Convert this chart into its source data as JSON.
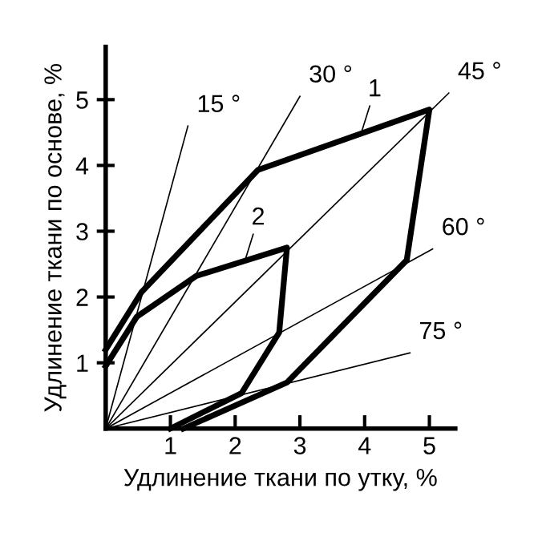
{
  "chart_data": {
    "type": "line",
    "xlabel": "Удлинение ткани по утку, %",
    "ylabel": "Удлинение ткани по основе, %",
    "xlim": [
      0,
      5.4
    ],
    "ylim": [
      0,
      5.8
    ],
    "xticks": [
      1,
      2,
      3,
      4,
      5
    ],
    "yticks": [
      1,
      2,
      3,
      4,
      5
    ],
    "grid": false,
    "legend": false,
    "marker": "none",
    "line_style": "solid",
    "series": [
      {
        "color": "#000000",
        "x": [
          0,
          0.55,
          2.35,
          5.0,
          4.65,
          2.8,
          1.2
        ],
        "values": [
          1.2,
          2.07,
          3.93,
          4.85,
          2.56,
          0.7,
          0
        ]
      },
      {
        "color": "#000000",
        "x": [
          0,
          0.48,
          1.4,
          2.8,
          2.68,
          2.1,
          1.0
        ],
        "values": [
          0.95,
          1.7,
          2.32,
          2.75,
          1.46,
          0.54,
          0
        ]
      },
      {
        "color": "#000000",
        "x": [
          0,
          1.27
        ],
        "values": [
          0,
          4.6
        ]
      },
      {
        "color": "#000000",
        "x": [
          0,
          3.0
        ],
        "values": [
          0,
          5.05
        ]
      },
      {
        "color": "#000000",
        "x": [
          0,
          5.3
        ],
        "values": [
          0,
          5.1
        ]
      },
      {
        "color": "#000000",
        "x": [
          0,
          5.05
        ],
        "values": [
          0,
          2.73
        ]
      },
      {
        "color": "#000000",
        "x": [
          0,
          4.7
        ],
        "values": [
          0,
          1.15
        ]
      }
    ],
    "annotations": [
      {
        "text": "15 °",
        "x": 1.27,
        "y": 4.6
      },
      {
        "text": "30 °",
        "x": 3.0,
        "y": 5.05
      },
      {
        "text": "45 °",
        "x": 5.3,
        "y": 5.1
      },
      {
        "text": "60 °",
        "x": 5.05,
        "y": 2.73
      },
      {
        "text": "75 °",
        "x": 4.7,
        "y": 1.15
      },
      {
        "text": "1",
        "x": 3.95,
        "y": 4.5
      },
      {
        "text": "2",
        "x": 2.15,
        "y": 2.55
      }
    ]
  }
}
